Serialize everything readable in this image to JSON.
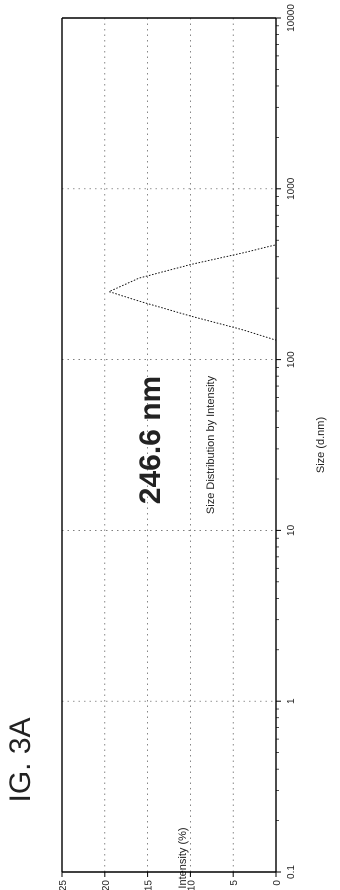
{
  "figure_label": "IG. 3A",
  "chart_data": {
    "type": "line",
    "title": "Size Distribution by Intensity",
    "xlabel": "Size (d.nm)",
    "ylabel": "Intensity (%)",
    "x_scale": "log",
    "xlim": [
      0.1,
      10000
    ],
    "ylim": [
      0,
      25
    ],
    "x_ticks": [
      {
        "value": 0.1,
        "label": "0.1"
      },
      {
        "value": 1,
        "label": "1"
      },
      {
        "value": 10,
        "label": "10"
      },
      {
        "value": 100,
        "label": "100"
      },
      {
        "value": 1000,
        "label": "1000"
      },
      {
        "value": 10000,
        "label": "10000"
      }
    ],
    "y_ticks": [
      {
        "value": 0,
        "label": "0"
      },
      {
        "value": 5,
        "label": "5"
      },
      {
        "value": 10,
        "label": "10"
      },
      {
        "value": 15,
        "label": "15"
      },
      {
        "value": 20,
        "label": "20"
      },
      {
        "value": 25,
        "label": "25"
      }
    ],
    "grid": true,
    "annotation": "246.6 nm",
    "series": [
      {
        "x": [
          0.1,
          130,
          150,
          180,
          220,
          250,
          300,
          360,
          420,
          470,
          10000
        ],
        "y": [
          0,
          0,
          4,
          10,
          16,
          19.5,
          16,
          10,
          4,
          0,
          0
        ]
      }
    ]
  }
}
